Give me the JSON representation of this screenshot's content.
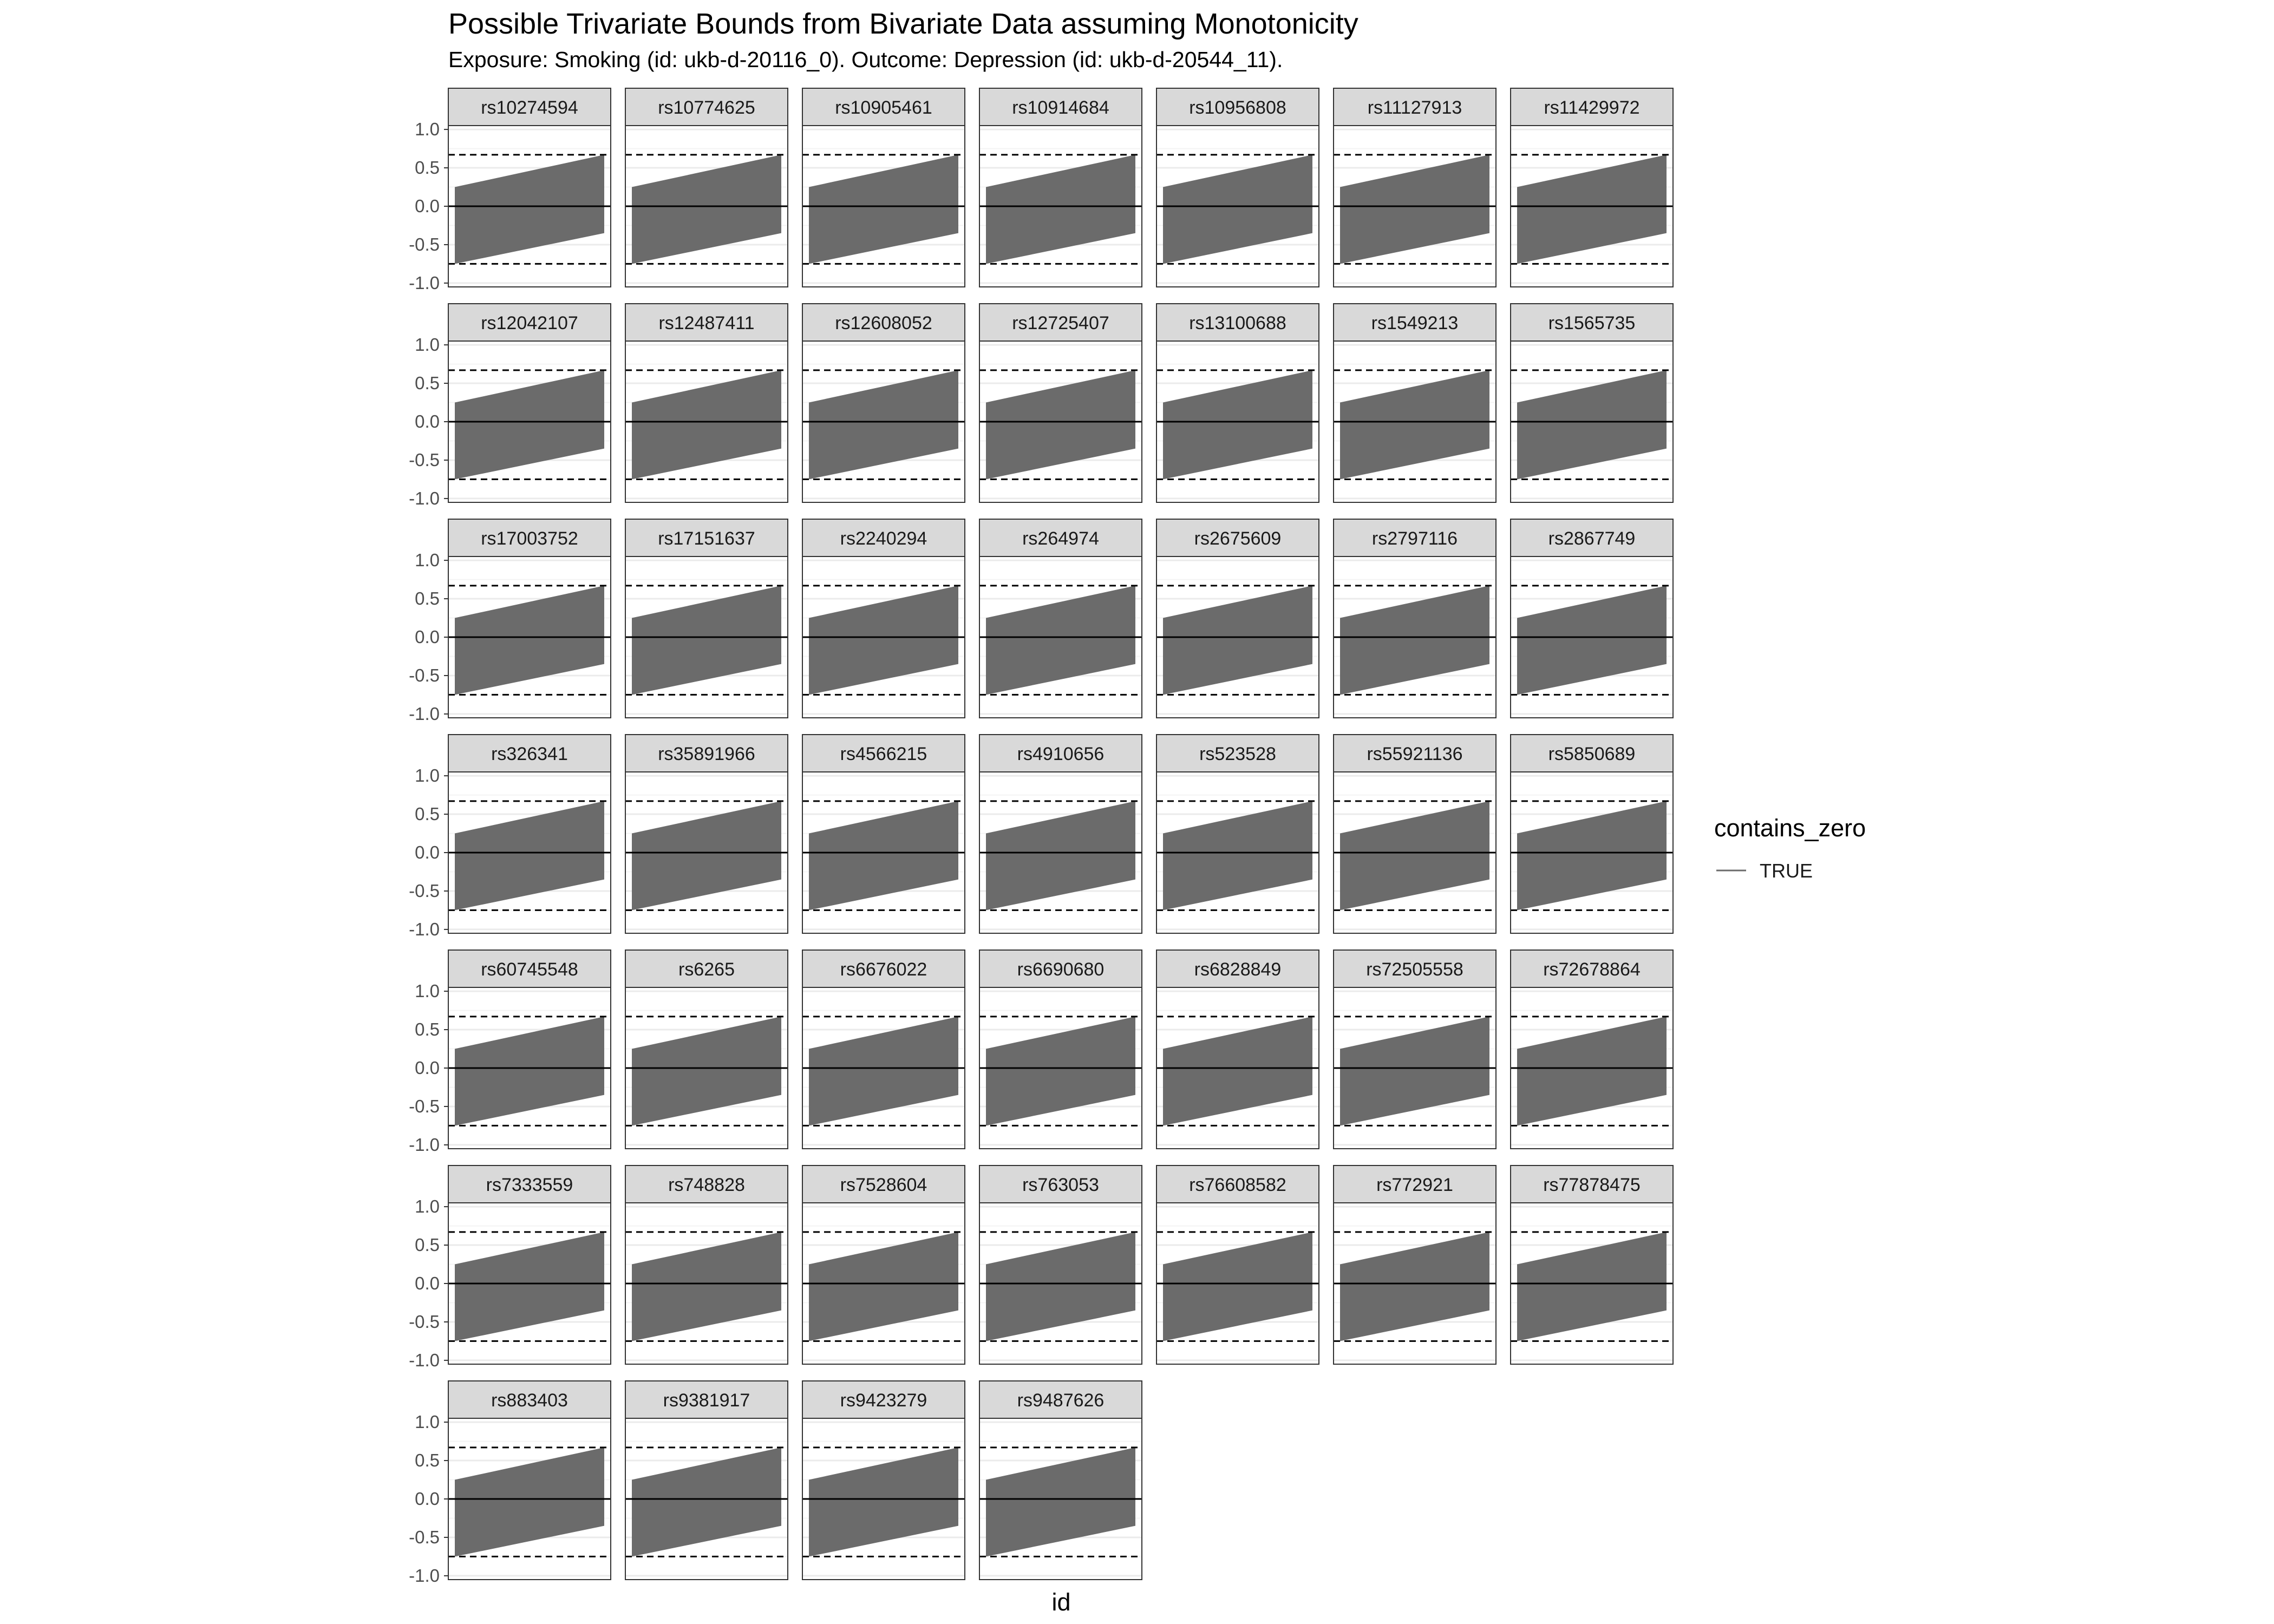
{
  "chart_data": {
    "type": "area",
    "title": "Possible Trivariate Bounds from Bivariate Data assuming Monotonicity",
    "subtitle": "Exposure: Smoking (id: ukb-d-20116_0). Outcome: Depression (id: ukb-d-20544_11).",
    "xlabel": "id",
    "ylabel": "",
    "ylim": [
      -1.05,
      1.05
    ],
    "y_ticks": [
      1.0,
      0.5,
      0.0,
      -0.5,
      -1.0
    ],
    "y_tick_labels": [
      "1.0",
      "0.5",
      "0.0",
      "-0.5",
      "-1.0"
    ],
    "grid": true,
    "reference_lines": {
      "solid_zero": 0.0,
      "dashed": [
        0.67,
        -0.75
      ]
    },
    "band": {
      "x_range": [
        0,
        1
      ],
      "lower": {
        "start": -0.75,
        "end": -0.35
      },
      "upper": {
        "start": 0.25,
        "end": 0.67
      }
    },
    "panels": [
      "rs10274594",
      "rs10774625",
      "rs10905461",
      "rs10914684",
      "rs10956808",
      "rs11127913",
      "rs11429972",
      "rs12042107",
      "rs12487411",
      "rs12608052",
      "rs12725407",
      "rs13100688",
      "rs1549213",
      "rs1565735",
      "rs17003752",
      "rs17151637",
      "rs2240294",
      "rs264974",
      "rs2675609",
      "rs2797116",
      "rs2867749",
      "rs326341",
      "rs35891966",
      "rs4566215",
      "rs4910656",
      "rs523528",
      "rs55921136",
      "rs5850689",
      "rs60745548",
      "rs6265",
      "rs6676022",
      "rs6690680",
      "rs6828849",
      "rs72505558",
      "rs72678864",
      "rs7333559",
      "rs748828",
      "rs7528604",
      "rs763053",
      "rs76608582",
      "rs772921",
      "rs77878475",
      "rs883403",
      "rs9381917",
      "rs9423279",
      "rs9487626"
    ],
    "legend": {
      "title": "contains_zero",
      "entries": [
        "TRUE"
      ],
      "placement": "right"
    },
    "colors": {
      "band": "#6b6b6b",
      "strip": "#d9d9d9",
      "grid": "#ebebeb",
      "panel_border": "#333333"
    }
  }
}
